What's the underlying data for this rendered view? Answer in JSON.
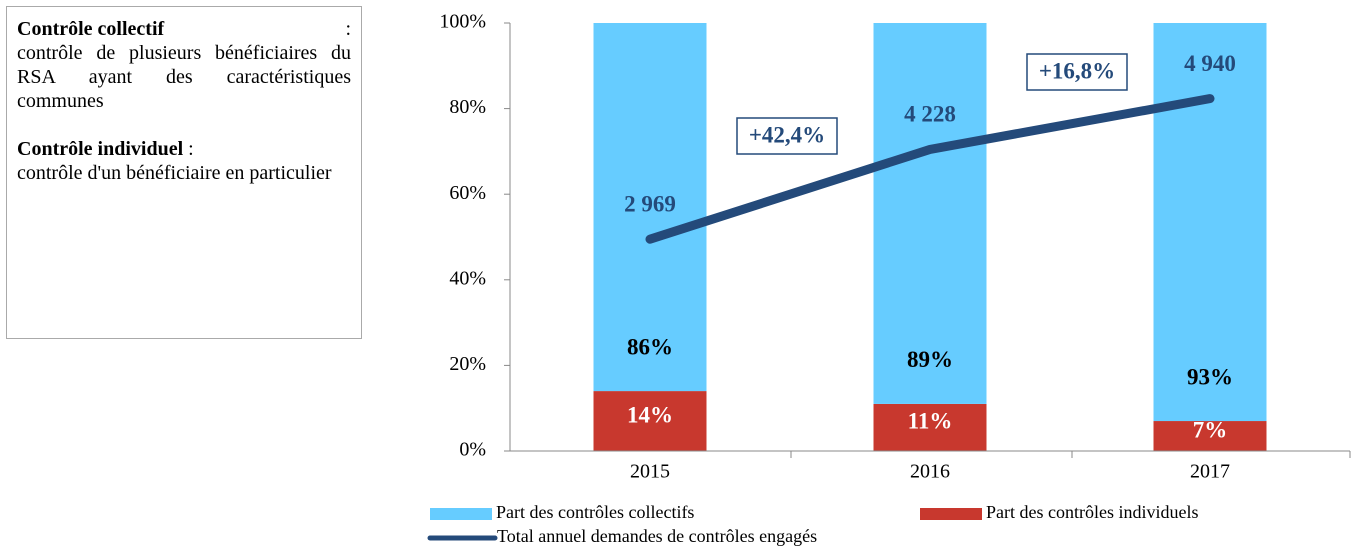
{
  "sidebar": {
    "items": [
      {
        "term": "Contrôle collectif",
        "separator": ":",
        "definition": "contrôle de plusieurs bénéficiaires du RSA ayant des caractéristiques communes"
      },
      {
        "term": "Contrôle individuel",
        "separator": ":",
        "definition": "contrôle d'un bénéficiaire en particulier"
      }
    ]
  },
  "chart_data": {
    "type": "bar",
    "stacked": true,
    "categories": [
      "2015",
      "2016",
      "2017"
    ],
    "series": [
      {
        "name": "Part des contrôles individuels",
        "color": "#c8382e",
        "values": [
          14,
          11,
          7
        ],
        "value_labels": [
          "14%",
          "11%",
          "7%"
        ]
      },
      {
        "name": "Part des contrôles collectifs",
        "color": "#66ccff",
        "values": [
          86,
          89,
          93
        ],
        "value_labels": [
          "86%",
          "89%",
          "93%"
        ]
      },
      {
        "name": "Total annuel demandes de contrôles engagés",
        "type": "line",
        "axis": "y2",
        "color": "#244a7a",
        "values": [
          2969,
          4228,
          4940
        ],
        "value_labels": [
          "2 969",
          "4 228",
          "4 940"
        ]
      }
    ],
    "ylim": [
      0,
      100
    ],
    "yticks": [
      {
        "value": 0,
        "label": "0%"
      },
      {
        "value": 20,
        "label": "20%"
      },
      {
        "value": 40,
        "label": "40%"
      },
      {
        "value": 60,
        "label": "60%"
      },
      {
        "value": 80,
        "label": "80%"
      },
      {
        "value": 100,
        "label": "100%"
      }
    ],
    "y2lim": [
      0,
      6000
    ],
    "annotations": [
      "+42,4%",
      "+16,8%"
    ],
    "legend": "bottom"
  }
}
